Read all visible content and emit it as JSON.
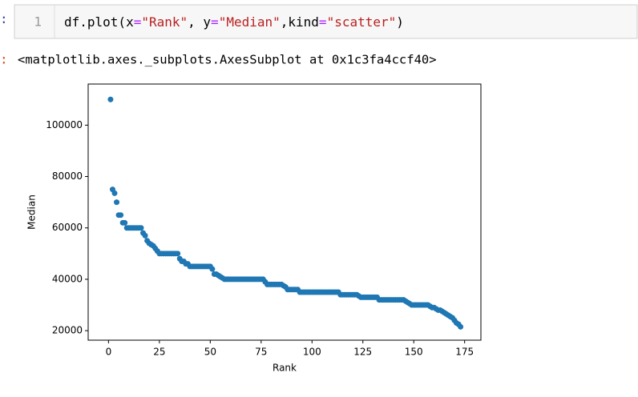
{
  "input_prompt": ":",
  "line_number": "1",
  "code_tokens": [
    {
      "text": "df.plot(x",
      "color": "#000000"
    },
    {
      "text": "=",
      "color": "#aa22ff"
    },
    {
      "text": "\"Rank\"",
      "color": "#ba2121"
    },
    {
      "text": ", y",
      "color": "#000000"
    },
    {
      "text": "=",
      "color": "#aa22ff"
    },
    {
      "text": "\"Median\"",
      "color": "#ba2121"
    },
    {
      "text": ",kind",
      "color": "#000000"
    },
    {
      "text": "=",
      "color": "#aa22ff"
    },
    {
      "text": "\"scatter\"",
      "color": "#ba2121"
    },
    {
      "text": ")",
      "color": "#000000"
    }
  ],
  "output_prompt": ":",
  "output_text": "<matplotlib.axes._subplots.AxesSubplot at 0x1c3fa4ccf40>",
  "chart_data": {
    "type": "scatter",
    "xlabel": "Rank",
    "ylabel": "Median",
    "color": "#1f77b4",
    "xlim": [
      -10,
      183
    ],
    "ylim": [
      16300,
      116000
    ],
    "xticks": [
      0,
      25,
      50,
      75,
      100,
      125,
      150,
      175
    ],
    "yticks": [
      20000,
      40000,
      60000,
      80000,
      100000
    ],
    "x": [
      1,
      2,
      3,
      4,
      5,
      6,
      7,
      8,
      9,
      10,
      11,
      12,
      13,
      14,
      15,
      16,
      17,
      18,
      19,
      20,
      21,
      22,
      23,
      24,
      25,
      26,
      27,
      28,
      29,
      30,
      31,
      32,
      33,
      34,
      35,
      36,
      37,
      38,
      39,
      40,
      41,
      42,
      43,
      44,
      45,
      46,
      47,
      48,
      49,
      50,
      51,
      52,
      53,
      54,
      55,
      56,
      57,
      58,
      59,
      60,
      61,
      62,
      63,
      64,
      65,
      66,
      67,
      68,
      69,
      70,
      71,
      72,
      73,
      74,
      75,
      76,
      77,
      78,
      79,
      80,
      81,
      82,
      83,
      84,
      85,
      86,
      87,
      88,
      89,
      90,
      91,
      92,
      93,
      94,
      95,
      96,
      97,
      98,
      99,
      100,
      101,
      102,
      103,
      104,
      105,
      106,
      107,
      108,
      109,
      110,
      111,
      112,
      113,
      114,
      115,
      116,
      117,
      118,
      119,
      120,
      121,
      122,
      123,
      124,
      125,
      126,
      127,
      128,
      129,
      130,
      131,
      132,
      133,
      134,
      135,
      136,
      137,
      138,
      139,
      140,
      141,
      142,
      143,
      144,
      145,
      146,
      147,
      148,
      149,
      150,
      151,
      152,
      153,
      154,
      155,
      156,
      157,
      158,
      159,
      160,
      161,
      162,
      163,
      164,
      165,
      166,
      167,
      168,
      169,
      170,
      171,
      172,
      173
    ],
    "values": [
      110000,
      75000,
      73500,
      70000,
      65000,
      65000,
      62000,
      62000,
      60000,
      60000,
      60000,
      60000,
      60000,
      60000,
      60000,
      60000,
      58000,
      57000,
      55000,
      54000,
      53500,
      53000,
      52000,
      51000,
      50000,
      50000,
      50000,
      50000,
      50000,
      50000,
      50000,
      50000,
      50000,
      50000,
      48000,
      47000,
      47000,
      46000,
      46000,
      45000,
      45000,
      45000,
      45000,
      45000,
      45000,
      45000,
      45000,
      45000,
      45000,
      45000,
      44000,
      42000,
      42000,
      41500,
      41000,
      40500,
      40000,
      40000,
      40000,
      40000,
      40000,
      40000,
      40000,
      40000,
      40000,
      40000,
      40000,
      40000,
      40000,
      40000,
      40000,
      40000,
      40000,
      40000,
      40000,
      40000,
      39000,
      38000,
      38000,
      38000,
      38000,
      38000,
      38000,
      38000,
      38000,
      37500,
      37000,
      36000,
      36000,
      36000,
      36000,
      36000,
      36000,
      35000,
      35000,
      35000,
      35000,
      35000,
      35000,
      35000,
      35000,
      35000,
      35000,
      35000,
      35000,
      35000,
      35000,
      35000,
      35000,
      35000,
      35000,
      35000,
      35000,
      34000,
      34000,
      34000,
      34000,
      34000,
      34000,
      34000,
      34000,
      34000,
      33500,
      33000,
      33000,
      33000,
      33000,
      33000,
      33000,
      33000,
      33000,
      33000,
      32000,
      32000,
      32000,
      32000,
      32000,
      32000,
      32000,
      32000,
      32000,
      32000,
      32000,
      32000,
      32000,
      31500,
      31000,
      30500,
      30000,
      30000,
      30000,
      30000,
      30000,
      30000,
      30000,
      30000,
      30000,
      29500,
      29000,
      29000,
      28500,
      28000,
      28000,
      27500,
      27000,
      26500,
      26000,
      25500,
      25000,
      24000,
      23000,
      22500,
      21500
    ]
  }
}
